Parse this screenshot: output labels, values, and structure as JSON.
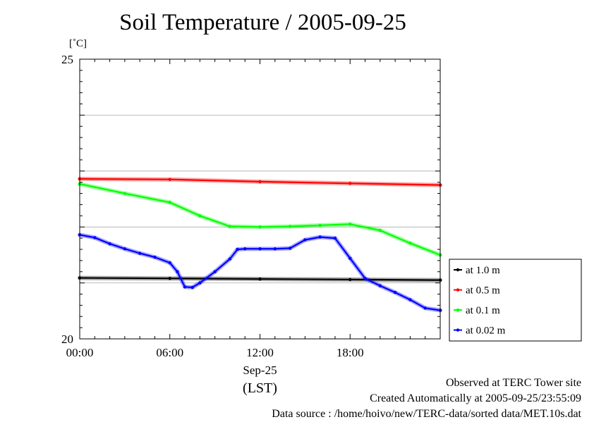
{
  "chart_data": {
    "type": "line",
    "title": "Soil Temperature / 2005-09-25",
    "ylabel": "[˚C]",
    "ylim": [
      20,
      25
    ],
    "yticks": [
      "25",
      "20"
    ],
    "xlim": [
      "00:00",
      "24:00"
    ],
    "xticks": [
      "00:00",
      "06:00",
      "12:00",
      "18:00"
    ],
    "xlabel_date": "Sep-25",
    "xlabel_tz": "(LST)",
    "grid": true,
    "legend_position": "right",
    "series": [
      {
        "name": "at 1.0 m",
        "color": "#000000",
        "x": [
          "00:00",
          "06:00",
          "12:00",
          "18:00",
          "24:00"
        ],
        "y": [
          21.09,
          21.08,
          21.07,
          21.06,
          21.05
        ]
      },
      {
        "name": "at 0.5 m",
        "color": "#ff0000",
        "x": [
          "00:00",
          "06:00",
          "12:00",
          "18:00",
          "24:00"
        ],
        "y": [
          22.86,
          22.85,
          22.81,
          22.78,
          22.75
        ]
      },
      {
        "name": "at 0.1 m",
        "color": "#00ff00",
        "x": [
          "00:00",
          "03:00",
          "06:00",
          "08:00",
          "10:00",
          "12:00",
          "14:00",
          "16:00",
          "18:00",
          "20:00",
          "22:00",
          "24:00"
        ],
        "y": [
          22.77,
          22.6,
          22.44,
          22.2,
          22.01,
          22.0,
          22.01,
          22.03,
          22.05,
          21.94,
          21.71,
          21.5
        ]
      },
      {
        "name": "at 0.02 m",
        "color": "#0000ff",
        "x": [
          "00:00",
          "01:00",
          "02:00",
          "03:00",
          "04:00",
          "05:00",
          "06:00",
          "06:30",
          "07:00",
          "07:30",
          "08:00",
          "09:00",
          "10:00",
          "10:30",
          "11:00",
          "12:00",
          "13:00",
          "14:00",
          "15:00",
          "16:00",
          "17:00",
          "18:00",
          "19:00",
          "20:00",
          "21:00",
          "22:00",
          "23:00",
          "24:00"
        ],
        "y": [
          21.86,
          21.81,
          21.7,
          21.61,
          21.53,
          21.46,
          21.36,
          21.2,
          20.93,
          20.92,
          21.0,
          21.2,
          21.43,
          21.6,
          21.61,
          21.61,
          21.61,
          21.62,
          21.77,
          21.82,
          21.8,
          21.44,
          21.08,
          20.95,
          20.83,
          20.7,
          20.55,
          20.51
        ]
      }
    ]
  },
  "footer": {
    "line1": "Observed at TERC Tower site",
    "line2": "Created Automatically at 2005-09-25/23:55:09",
    "line3": "Data source : /home/hoivo/new/TERC-data/sorted  data/MET.10s.dat"
  }
}
